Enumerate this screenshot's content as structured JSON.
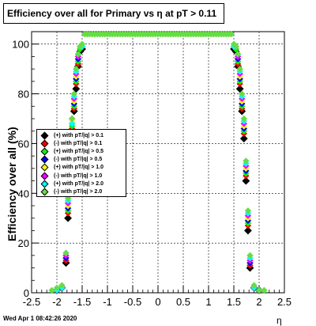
{
  "title": "Efficiency over all for Primary vs   η at pT > 0.11",
  "footer": "Wed Apr  1 08:42:26 2020",
  "chart_data": {
    "type": "scatter",
    "title": "Efficiency over all for Primary vs   η at pT > 0.11",
    "xlabel": "η",
    "ylabel": "Efficiency over all (%)",
    "xlim": [
      -2.5,
      2.5
    ],
    "ylim": [
      0,
      105
    ],
    "xticks": [
      "-2.5",
      "-2",
      "-1.5",
      "-1",
      "-0.5",
      "0",
      "0.5",
      "1",
      "1.5",
      "2",
      "2.5"
    ],
    "yticks": [
      "0",
      "20",
      "40",
      "60",
      "80",
      "100"
    ],
    "grid": true,
    "legend_position": "left-middle",
    "series": [
      {
        "name": "(+) with pT/|q| > 0.1",
        "color": "#000000",
        "x": [
          -2.0,
          -1.9,
          -1.82,
          -1.78,
          -1.74,
          -1.7,
          -1.66,
          -1.62,
          -1.58,
          -1.54,
          -1.5,
          1.5,
          1.54,
          1.58,
          1.62,
          1.66,
          1.7,
          1.74,
          1.78,
          1.82,
          1.9,
          2.0
        ],
        "y": [
          1,
          2,
          12,
          30,
          52,
          65,
          73,
          82,
          91,
          97,
          98,
          98,
          97,
          91,
          82,
          73,
          62,
          45,
          25,
          10,
          2,
          1
        ]
      },
      {
        "name": "(-) with pT/|q| > 0.1",
        "color": "#ff0000",
        "x": [
          -2.0,
          -1.9,
          -1.82,
          -1.78,
          -1.74,
          -1.7,
          -1.66,
          -1.62,
          -1.58,
          -1.54,
          -1.5,
          1.5,
          1.54,
          1.58,
          1.62,
          1.66,
          1.7,
          1.74,
          1.78,
          1.82,
          1.9,
          2.0
        ],
        "y": [
          1,
          2,
          13,
          32,
          54,
          66,
          74,
          84,
          92,
          98,
          99,
          99,
          98,
          92,
          84,
          74,
          64,
          47,
          27,
          11,
          2,
          1
        ]
      },
      {
        "name": "(+) with pT/|q| > 0.5",
        "color": "#00ff00",
        "x": [
          -2.0,
          -1.9,
          -1.82,
          -1.78,
          -1.74,
          -1.7,
          -1.66,
          -1.62,
          -1.58,
          -1.54,
          -1.5,
          1.5,
          1.54,
          1.58,
          1.62,
          1.66,
          1.7,
          1.74,
          1.78,
          1.82,
          1.9,
          2.0
        ],
        "y": [
          1,
          2,
          14,
          33,
          56,
          67,
          75,
          85,
          93,
          98,
          99,
          99,
          98,
          93,
          85,
          75,
          65,
          48,
          28,
          12,
          2,
          1
        ]
      },
      {
        "name": "(-) with pT/|q| > 0.5",
        "color": "#0000ff",
        "x": [
          -2.0,
          -1.9,
          -1.82,
          -1.78,
          -1.74,
          -1.7,
          -1.66,
          -1.62,
          -1.58,
          -1.54,
          -1.5,
          1.5,
          1.54,
          1.58,
          1.62,
          1.66,
          1.7,
          1.74,
          1.78,
          1.82,
          1.9,
          2.0
        ],
        "y": [
          1,
          2,
          14,
          34,
          57,
          68,
          76,
          86,
          94,
          99,
          99,
          99,
          99,
          94,
          86,
          76,
          66,
          49,
          29,
          12,
          2,
          1
        ]
      },
      {
        "name": "(+) with pT/|q| > 1.0",
        "color": "#ffff00",
        "x": [
          -2.0,
          -1.9,
          -1.82,
          -1.78,
          -1.74,
          -1.7,
          -1.66,
          -1.62,
          -1.58,
          -1.54,
          -1.5,
          1.5,
          1.54,
          1.58,
          1.62,
          1.66,
          1.7,
          1.74,
          1.78,
          1.82,
          1.9,
          2.0
        ],
        "y": [
          1,
          2,
          15,
          35,
          58,
          69,
          77,
          87,
          95,
          99,
          99,
          99,
          99,
          95,
          87,
          77,
          67,
          50,
          30,
          13,
          2,
          1
        ]
      },
      {
        "name": "(-) with pT/|q| > 1.0",
        "color": "#ff00ff",
        "x": [
          -2.0,
          -1.9,
          -1.82,
          -1.78,
          -1.74,
          -1.7,
          -1.66,
          -1.62,
          -1.58,
          -1.54,
          -1.5,
          1.5,
          1.54,
          1.58,
          1.62,
          1.66,
          1.7,
          1.74,
          1.78,
          1.82,
          1.9,
          2.0
        ],
        "y": [
          1,
          2,
          15,
          36,
          59,
          70,
          78,
          88,
          95,
          99,
          99,
          99,
          99,
          95,
          88,
          78,
          68,
          51,
          31,
          13,
          2,
          1
        ]
      },
      {
        "name": "(+) with pT/|q| > 2.0",
        "color": "#00ffff",
        "x": [
          -2.0,
          -1.9,
          -1.82,
          -1.78,
          -1.74,
          -1.7,
          -1.66,
          -1.62,
          -1.58,
          -1.54,
          -1.5,
          1.5,
          1.54,
          1.58,
          1.62,
          1.66,
          1.7,
          1.74,
          1.78,
          1.82,
          1.9,
          2.0
        ],
        "y": [
          1,
          2,
          16,
          37,
          60,
          68,
          79,
          89,
          96,
          99,
          99,
          99,
          99,
          96,
          89,
          79,
          69,
          52,
          32,
          14,
          2,
          1
        ]
      },
      {
        "name": "(-) with pT/|q| > 2.0",
        "color": "#66dd44",
        "x": [
          -2.1,
          -2.0,
          -1.9,
          -1.82,
          -1.78,
          -1.74,
          -1.7,
          -1.66,
          -1.62,
          -1.58,
          -1.54,
          -1.5,
          -1.45,
          -1.4,
          -1.35,
          -1.3,
          -1.25,
          -1.2,
          -1.15,
          -1.1,
          -1.05,
          -1.0,
          -0.95,
          -0.9,
          -0.85,
          -0.8,
          -0.75,
          -0.7,
          -0.65,
          -0.6,
          -0.55,
          -0.5,
          -0.45,
          -0.4,
          -0.35,
          -0.3,
          -0.25,
          -0.2,
          -0.15,
          -0.1,
          -0.05,
          0.0,
          0.05,
          0.1,
          0.15,
          0.2,
          0.25,
          0.3,
          0.35,
          0.4,
          0.45,
          0.5,
          0.55,
          0.6,
          0.65,
          0.7,
          0.75,
          0.8,
          0.85,
          0.9,
          0.95,
          1.0,
          1.05,
          1.1,
          1.15,
          1.2,
          1.25,
          1.3,
          1.35,
          1.4,
          1.45,
          1.5,
          1.54,
          1.58,
          1.62,
          1.66,
          1.7,
          1.74,
          1.78,
          1.82,
          1.9,
          2.0,
          2.1
        ],
        "y": [
          1,
          2,
          3,
          16,
          38,
          60,
          70,
          80,
          90,
          96,
          99,
          100,
          104,
          104,
          104,
          104,
          104,
          104,
          104,
          104,
          104,
          104,
          104,
          104,
          104,
          104,
          104,
          104,
          104,
          104,
          104,
          104,
          104,
          104,
          104,
          104,
          104,
          104,
          104,
          104,
          104,
          104,
          104,
          104,
          104,
          104,
          104,
          104,
          104,
          104,
          104,
          104,
          104,
          104,
          104,
          104,
          104,
          104,
          104,
          104,
          104,
          104,
          104,
          104,
          104,
          104,
          104,
          104,
          104,
          104,
          104,
          100,
          99,
          96,
          90,
          80,
          70,
          53,
          33,
          15,
          3,
          1,
          1
        ]
      }
    ]
  }
}
